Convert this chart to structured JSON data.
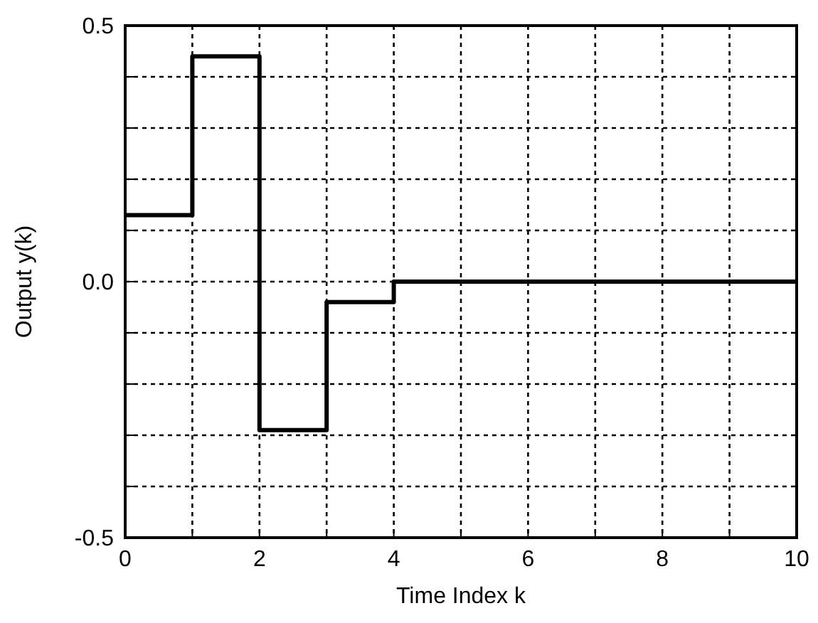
{
  "chart_data": {
    "type": "step",
    "xlabel": "Time Index k",
    "ylabel": "Output y(k)",
    "x": [
      0,
      1,
      2,
      3,
      4,
      5,
      6,
      7,
      8,
      9,
      10
    ],
    "series": [
      {
        "color": "#000000",
        "values": [
          0.13,
          0.44,
          -0.29,
          -0.04,
          0,
          0,
          0,
          0,
          0,
          0,
          0
        ]
      }
    ],
    "xlim": [
      0,
      10
    ],
    "ylim": [
      -0.5,
      0.5
    ],
    "xticks": [
      0,
      {
        "value": 1,
        "label": null
      },
      2,
      {
        "value": 3,
        "label": null
      },
      4,
      {
        "value": 5,
        "label": null
      },
      6,
      {
        "value": 7,
        "label": null
      },
      8,
      {
        "value": 9,
        "label": null
      },
      10
    ],
    "yticks": [
      {
        "value": -0.5,
        "label": "-0.5"
      },
      {
        "value": -0.4,
        "label": null
      },
      {
        "value": -0.3,
        "label": null
      },
      {
        "value": -0.2,
        "label": null
      },
      {
        "value": -0.1,
        "label": null
      },
      {
        "value": 0,
        "label": "0.0"
      },
      {
        "value": 0.1,
        "label": null
      },
      {
        "value": 0.2,
        "label": null
      },
      {
        "value": 0.3,
        "label": null
      },
      {
        "value": 0.4,
        "label": null
      },
      {
        "value": 0.5,
        "label": "0.5"
      }
    ],
    "grid": true,
    "line_style": "solid",
    "marker": "none"
  }
}
